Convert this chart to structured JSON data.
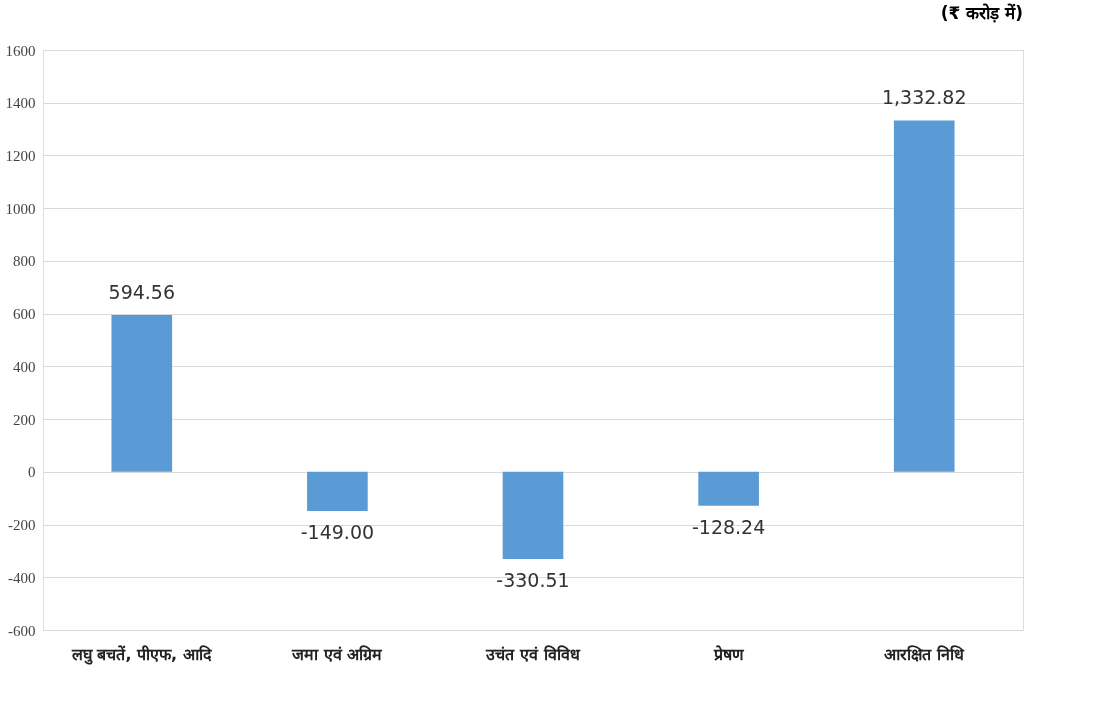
{
  "chart_data": {
    "type": "bar",
    "title": "(₹ करोड़ में)",
    "categories": [
      "लघु बचतें, पीएफ, आदि",
      "जमा एवं अग्रिम",
      "उचंत एवं विविध",
      "प्रेषण",
      "आरक्षित निधि"
    ],
    "values": [
      594.56,
      -149.0,
      -330.51,
      -128.24,
      1332.82
    ],
    "value_labels": [
      "594.56",
      "-149.00",
      "-330.51",
      "-128.24",
      "1,332.82"
    ],
    "color": "#5b9bd5",
    "ylim": [
      -600,
      1600
    ],
    "yticks": [
      -600,
      -400,
      -200,
      0,
      200,
      400,
      600,
      800,
      1000,
      1200,
      1400,
      1600
    ],
    "grid": "y"
  }
}
